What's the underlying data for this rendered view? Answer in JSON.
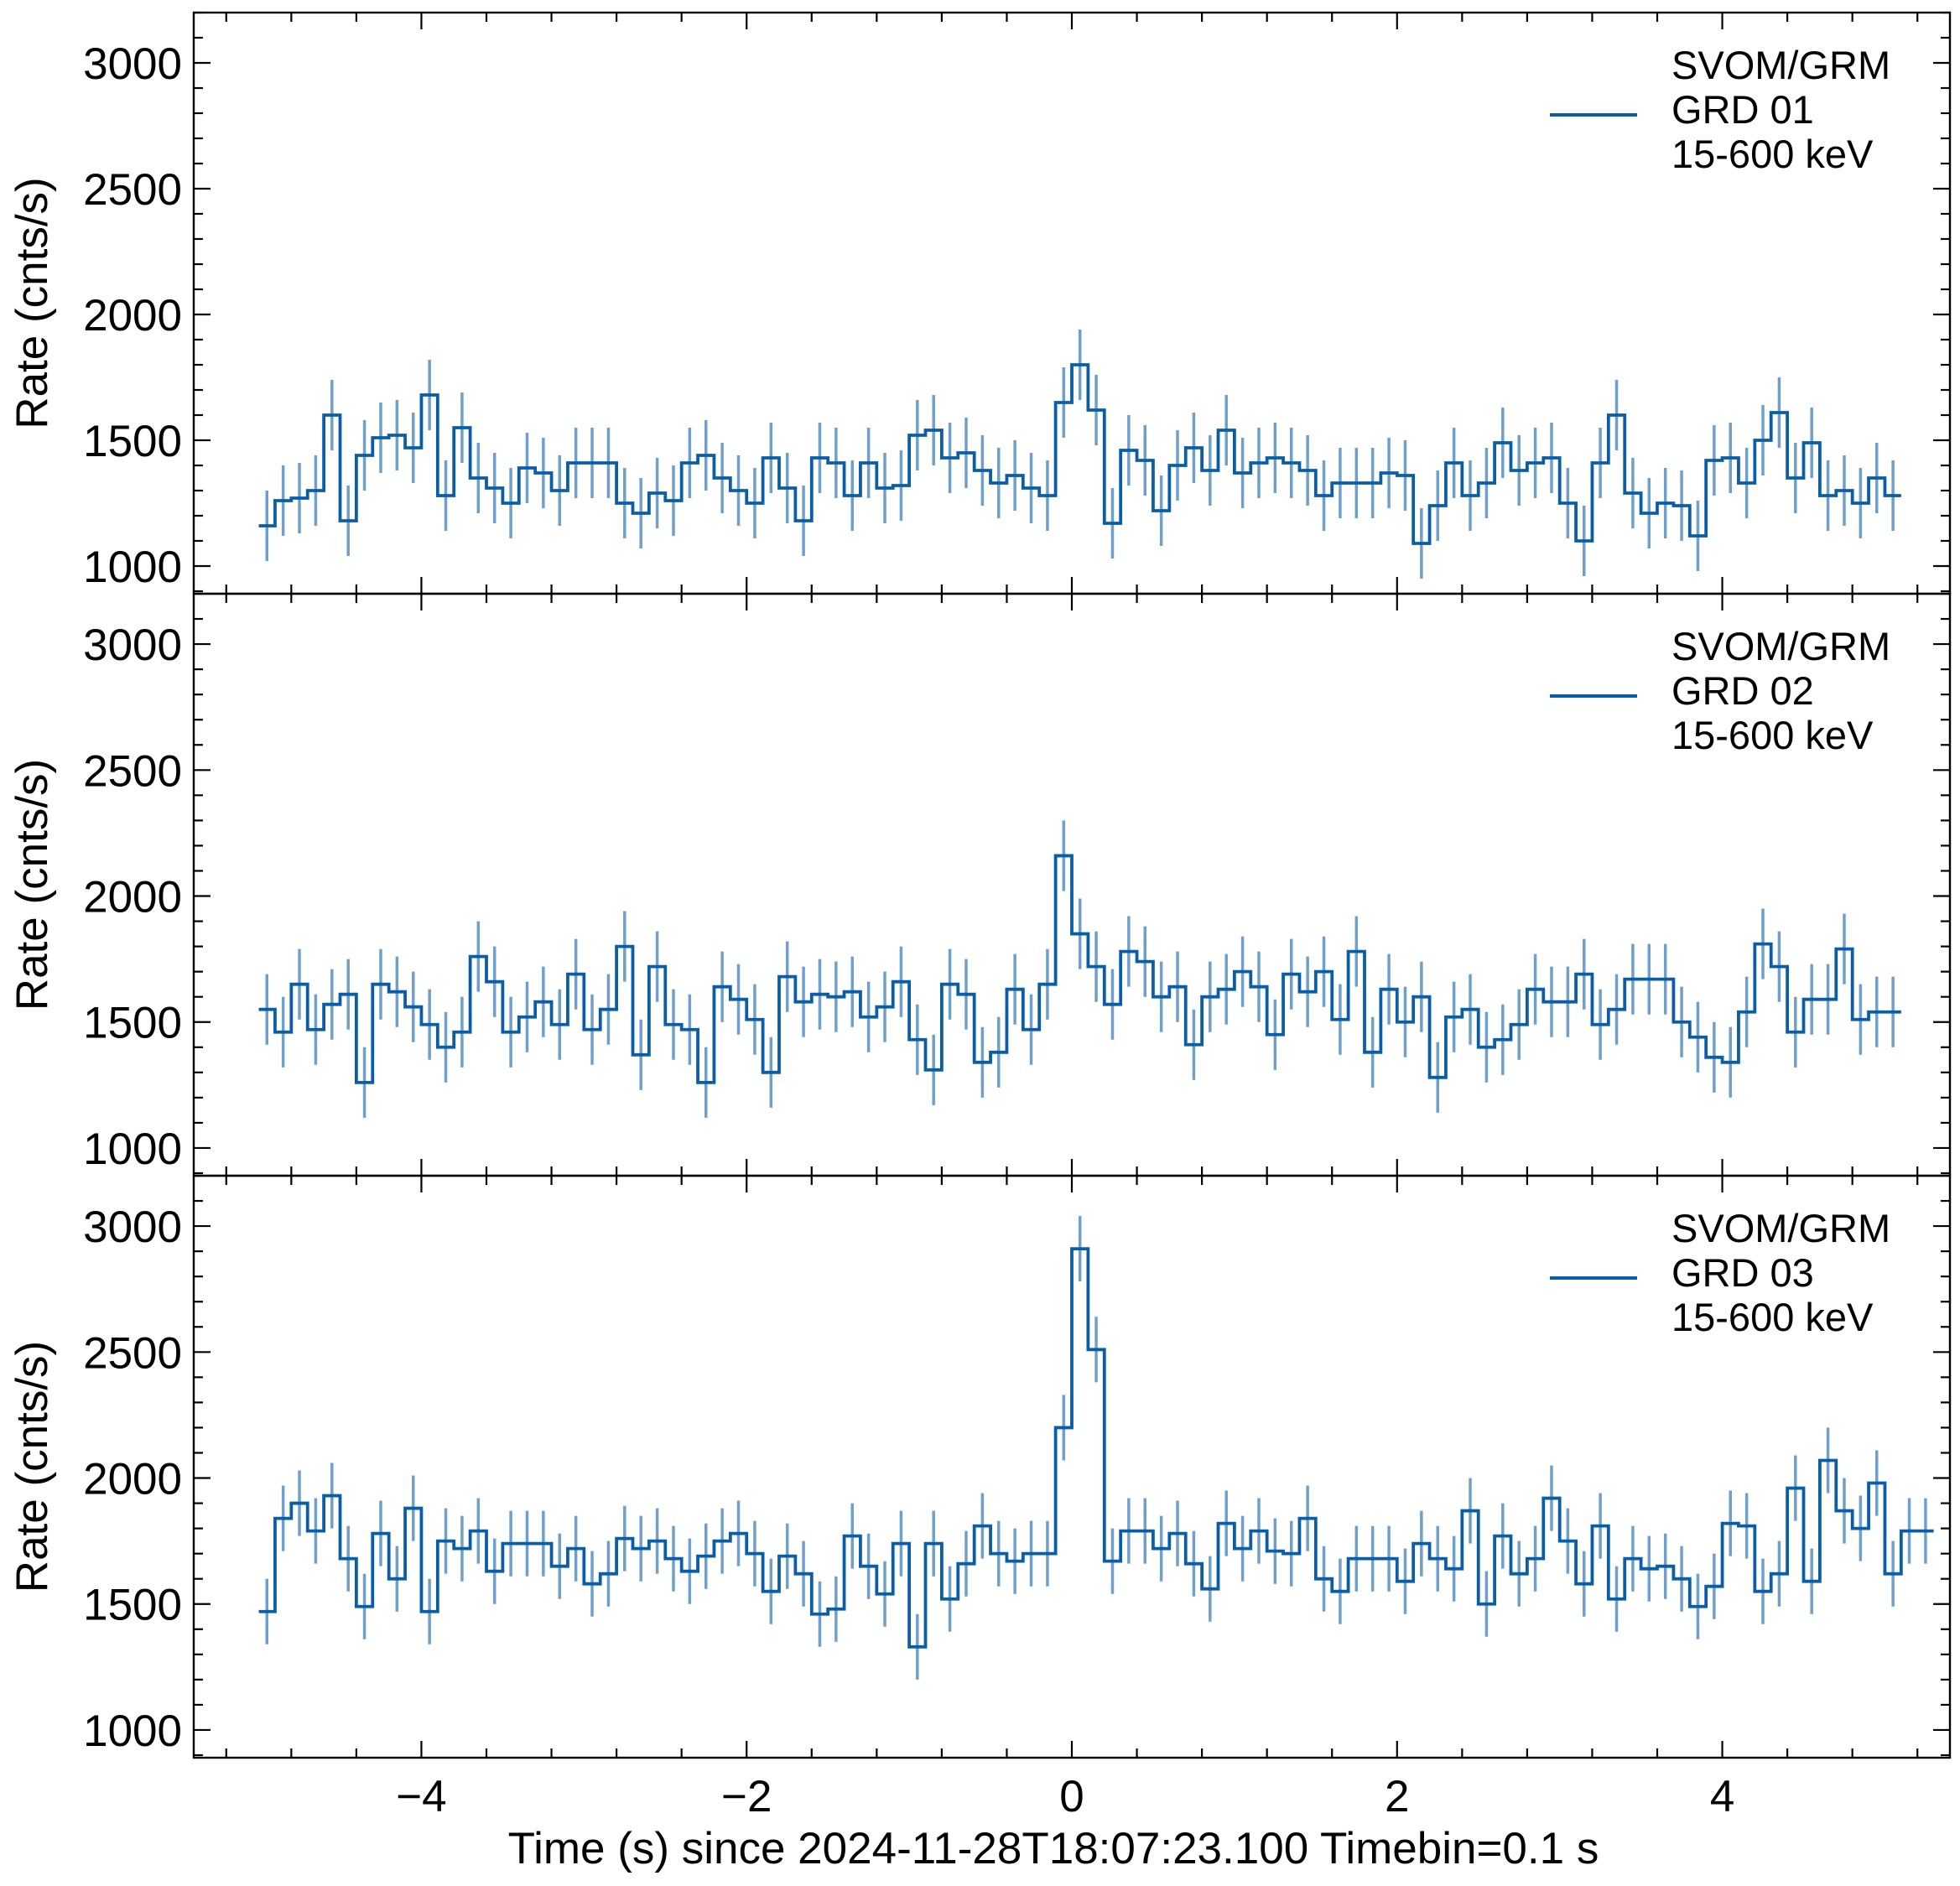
{
  "colors": {
    "line": "#0a5ea8",
    "error": "#6fa0cc",
    "axis": "#000000"
  },
  "chart_data": {
    "type": "line",
    "style": "step",
    "xlabel": "Time (s) since 2024-11-28T18:07:23.100 Timebin=0.1 s",
    "xlim": [
      -5.4,
      5.4
    ],
    "xticks": [
      -4,
      -2,
      0,
      2,
      4
    ],
    "xtick_labels": [
      "−4",
      "−2",
      "0",
      "2",
      "4"
    ],
    "bin_start": -5.0,
    "bin_width": 0.1,
    "panels": [
      {
        "ylabel": "Rate (cnts/s)",
        "ylim": [
          890,
          3200
        ],
        "yticks": [
          1000,
          1500,
          2000,
          2500,
          3000
        ],
        "legend": [
          "SVOM/GRM",
          "GRD 01",
          "15-600 keV"
        ],
        "error": 140,
        "values": [
          1160,
          1260,
          1270,
          1300,
          1600,
          1180,
          1440,
          1510,
          1520,
          1470,
          1680,
          1280,
          1550,
          1350,
          1310,
          1250,
          1390,
          1370,
          1300,
          1410,
          1410,
          1410,
          1250,
          1210,
          1290,
          1260,
          1410,
          1440,
          1350,
          1300,
          1250,
          1430,
          1310,
          1180,
          1430,
          1410,
          1280,
          1410,
          1310,
          1320,
          1520,
          1540,
          1430,
          1450,
          1380,
          1330,
          1360,
          1310,
          1280,
          1650,
          1800,
          1620,
          1170,
          1460,
          1420,
          1220,
          1400,
          1470,
          1380,
          1540,
          1370,
          1410,
          1430,
          1410,
          1380,
          1280,
          1330,
          1330,
          1330,
          1370,
          1360,
          1090,
          1240,
          1410,
          1280,
          1330,
          1490,
          1380,
          1410,
          1430,
          1250,
          1100,
          1410,
          1600,
          1290,
          1210,
          1250,
          1240,
          1120,
          1420,
          1430,
          1330,
          1500,
          1610,
          1350,
          1490,
          1280,
          1300,
          1250,
          1350,
          1280
        ]
      },
      {
        "ylabel": "Rate (cnts/s)",
        "ylim": [
          890,
          3200
        ],
        "yticks": [
          1000,
          1500,
          2000,
          2500,
          3000
        ],
        "legend": [
          "SVOM/GRM",
          "GRD 02",
          "15-600 keV"
        ],
        "error": 140,
        "values": [
          1550,
          1460,
          1650,
          1470,
          1570,
          1610,
          1260,
          1650,
          1620,
          1560,
          1490,
          1400,
          1460,
          1760,
          1660,
          1460,
          1520,
          1580,
          1490,
          1690,
          1470,
          1550,
          1800,
          1370,
          1720,
          1490,
          1470,
          1260,
          1640,
          1590,
          1510,
          1300,
          1680,
          1580,
          1610,
          1600,
          1620,
          1520,
          1560,
          1660,
          1430,
          1310,
          1650,
          1610,
          1340,
          1380,
          1630,
          1470,
          1650,
          2160,
          1850,
          1720,
          1570,
          1780,
          1740,
          1600,
          1640,
          1410,
          1600,
          1630,
          1700,
          1640,
          1450,
          1690,
          1620,
          1700,
          1510,
          1780,
          1380,
          1630,
          1500,
          1600,
          1280,
          1520,
          1550,
          1400,
          1430,
          1490,
          1630,
          1580,
          1580,
          1690,
          1490,
          1550,
          1670,
          1670,
          1670,
          1500,
          1440,
          1360,
          1340,
          1540,
          1810,
          1720,
          1460,
          1590,
          1590,
          1790,
          1510,
          1540,
          1540
        ]
      },
      {
        "ylabel": "Rate (cnts/s)",
        "ylim": [
          890,
          3200
        ],
        "yticks": [
          1000,
          1500,
          2000,
          2500,
          3000
        ],
        "legend": [
          "SVOM/GRM",
          "GRD 03",
          "15-600 keV"
        ],
        "error": 130,
        "values": [
          1470,
          1840,
          1900,
          1790,
          1930,
          1680,
          1490,
          1780,
          1600,
          1880,
          1470,
          1750,
          1720,
          1790,
          1630,
          1740,
          1740,
          1740,
          1650,
          1720,
          1580,
          1620,
          1760,
          1720,
          1750,
          1680,
          1630,
          1690,
          1750,
          1780,
          1700,
          1550,
          1690,
          1620,
          1460,
          1480,
          1770,
          1650,
          1540,
          1740,
          1330,
          1740,
          1520,
          1660,
          1810,
          1700,
          1670,
          1700,
          1700,
          2200,
          2910,
          2510,
          1670,
          1790,
          1790,
          1720,
          1780,
          1660,
          1560,
          1820,
          1720,
          1790,
          1710,
          1700,
          1840,
          1600,
          1550,
          1680,
          1680,
          1680,
          1590,
          1740,
          1680,
          1640,
          1870,
          1500,
          1770,
          1620,
          1680,
          1920,
          1750,
          1580,
          1810,
          1520,
          1680,
          1640,
          1650,
          1600,
          1490,
          1570,
          1820,
          1810,
          1550,
          1620,
          1960,
          1590,
          2070,
          1870,
          1800,
          1980,
          1620,
          1790,
          1790
        ]
      }
    ]
  }
}
